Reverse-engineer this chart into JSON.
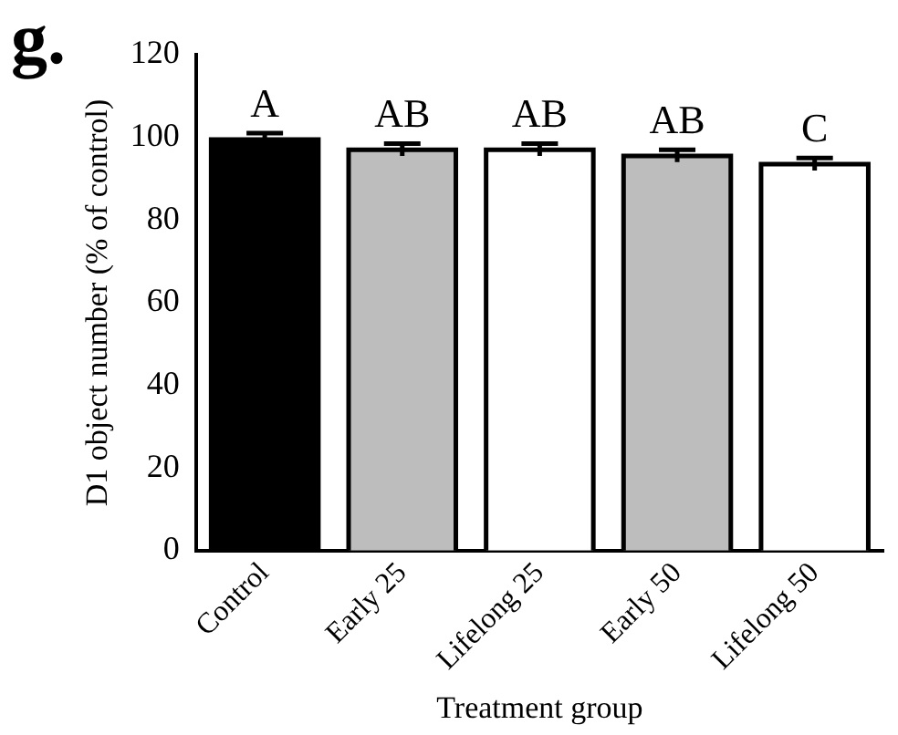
{
  "chart_data": {
    "type": "bar",
    "xlabel": "Treatment group",
    "ylabel": "D1 object number (% of control)",
    "categories": [
      "Control",
      "Early 25",
      "Lifelong 25",
      "Early 50",
      "Lifelong 50"
    ],
    "values": [
      99.5,
      97,
      97,
      95.5,
      93.5
    ],
    "errors": [
      1.5,
      1.5,
      1.5,
      1.5,
      1.5
    ],
    "colors": [
      "#000000",
      "#bdbdbd",
      "#ffffff",
      "#bdbdbd",
      "#ffffff"
    ],
    "ylim": [
      0,
      120
    ],
    "yticks": [
      0,
      20,
      40,
      60,
      80,
      100,
      120
    ],
    "grid": false,
    "legend": false,
    "annotations": [
      "g.",
      {
        "text": "A",
        "x": "Control",
        "y": 101
      },
      {
        "text": "AB",
        "x": "Early 25",
        "y": 98.5
      },
      {
        "text": "AB",
        "x": "Lifelong 25",
        "y": 98.5
      },
      {
        "text": "AB",
        "x": "Early 50",
        "y": 97
      },
      {
        "text": "C",
        "x": "Lifelong 50",
        "y": 95
      }
    ]
  }
}
